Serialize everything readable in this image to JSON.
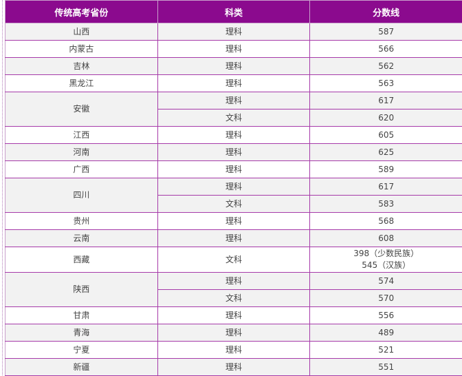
{
  "header": {
    "province": "传统高考省份",
    "category": "科类",
    "score": "分数线"
  },
  "rows": [
    {
      "province": "山西",
      "entries": [
        {
          "category": "理科",
          "score": "587"
        }
      ]
    },
    {
      "province": "内蒙古",
      "entries": [
        {
          "category": "理科",
          "score": "566"
        }
      ]
    },
    {
      "province": "吉林",
      "entries": [
        {
          "category": "理科",
          "score": "562"
        }
      ]
    },
    {
      "province": "黑龙江",
      "entries": [
        {
          "category": "理科",
          "score": "563"
        }
      ]
    },
    {
      "province": "安徽",
      "entries": [
        {
          "category": "理科",
          "score": "617"
        },
        {
          "category": "文科",
          "score": "620"
        }
      ]
    },
    {
      "province": "江西",
      "entries": [
        {
          "category": "理科",
          "score": "605"
        }
      ]
    },
    {
      "province": "河南",
      "entries": [
        {
          "category": "理科",
          "score": "625"
        }
      ]
    },
    {
      "province": "广西",
      "entries": [
        {
          "category": "理科",
          "score": "589"
        }
      ]
    },
    {
      "province": "四川",
      "entries": [
        {
          "category": "理科",
          "score": "617"
        },
        {
          "category": "文科",
          "score": "583"
        }
      ]
    },
    {
      "province": "贵州",
      "entries": [
        {
          "category": "理科",
          "score": "568"
        }
      ]
    },
    {
      "province": "云南",
      "entries": [
        {
          "category": "理科",
          "score": "608"
        }
      ]
    },
    {
      "province": "西藏",
      "entries": [
        {
          "category": "文科",
          "score": "398（少数民族）",
          "score2": "545（汉族）"
        }
      ]
    },
    {
      "province": "陕西",
      "entries": [
        {
          "category": "理科",
          "score": "574"
        },
        {
          "category": "文科",
          "score": "570"
        }
      ]
    },
    {
      "province": "甘肃",
      "entries": [
        {
          "category": "理科",
          "score": "556"
        }
      ]
    },
    {
      "province": "青海",
      "entries": [
        {
          "category": "理科",
          "score": "489"
        }
      ]
    },
    {
      "province": "宁夏",
      "entries": [
        {
          "category": "理科",
          "score": "521"
        }
      ]
    },
    {
      "province": "新疆",
      "entries": [
        {
          "category": "理科",
          "score": "551"
        }
      ]
    }
  ]
}
